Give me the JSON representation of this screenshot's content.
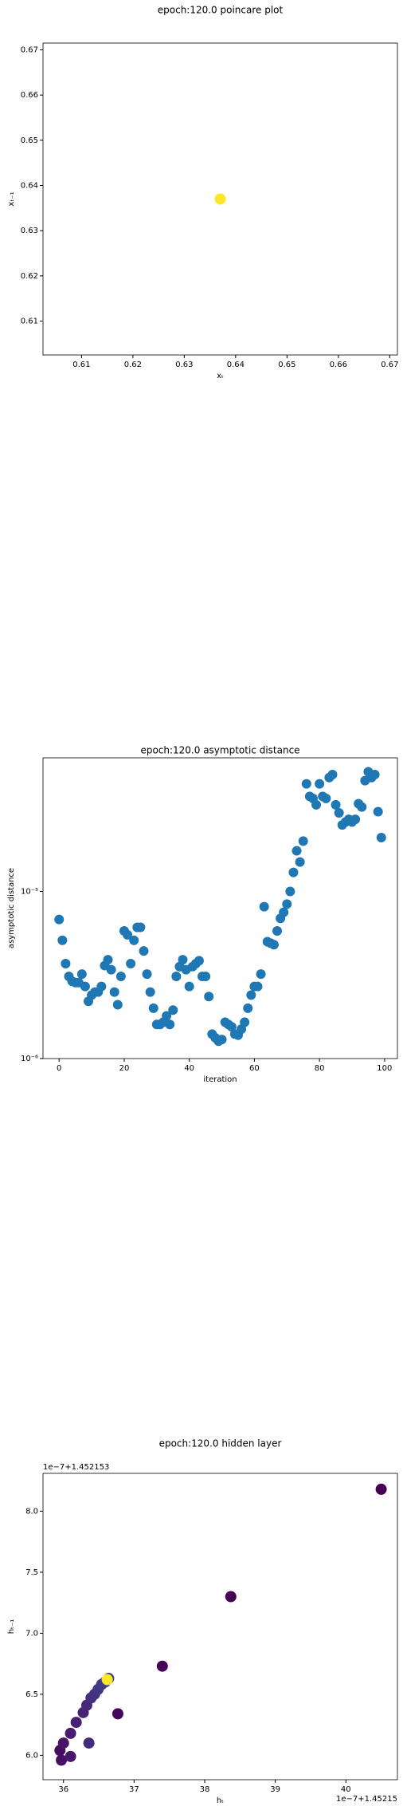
{
  "chart_data": [
    {
      "type": "scatter",
      "title": "epoch:120.0 poincare plot",
      "xlabel": "xₜ",
      "ylabel": "xₜ₋₁",
      "x": [
        0.637
      ],
      "values": [
        0.637
      ],
      "color": "#fde725",
      "xlim": [
        0.6025,
        0.6715
      ],
      "ylim": [
        0.6025,
        0.6715
      ],
      "xticks": [
        0.61,
        0.62,
        0.63,
        0.64,
        0.65,
        0.66,
        0.67
      ],
      "yticks": [
        0.61,
        0.62,
        0.63,
        0.64,
        0.65,
        0.66,
        0.67
      ]
    },
    {
      "type": "scatter",
      "title": "epoch:120.0 asymptotic distance",
      "xlabel": "iteration",
      "ylabel": "asymptotic distance",
      "log_y": true,
      "color": "#1f77b4",
      "x": [
        0,
        1,
        2,
        3,
        4,
        5,
        6,
        7,
        8,
        9,
        10,
        11,
        12,
        13,
        14,
        15,
        16,
        17,
        18,
        19,
        20,
        21,
        22,
        23,
        24,
        25,
        26,
        27,
        28,
        29,
        30,
        31,
        32,
        33,
        34,
        35,
        36,
        37,
        38,
        39,
        40,
        41,
        42,
        43,
        44,
        45,
        46,
        47,
        48,
        49,
        50,
        51,
        52,
        53,
        54,
        55,
        56,
        57,
        58,
        59,
        60,
        61,
        62,
        63,
        64,
        65,
        66,
        67,
        68,
        69,
        70,
        71,
        72,
        73,
        74,
        75,
        76,
        77,
        78,
        79,
        80,
        81,
        82,
        83,
        84,
        85,
        86,
        87,
        88,
        89,
        90,
        91,
        92,
        93,
        94,
        95,
        96,
        97,
        98,
        99
      ],
      "values": [
        6.8e-06,
        5.1e-06,
        3.7e-06,
        3.1e-06,
        2.9e-06,
        2.85e-06,
        2.85e-06,
        3.2e-06,
        2.7e-06,
        2.2e-06,
        2.4e-06,
        2.5e-06,
        2.5e-06,
        2.7e-06,
        3.6e-06,
        3.9e-06,
        3.4e-06,
        2.5e-06,
        2.1e-06,
        3.1e-06,
        5.8e-06,
        5.5e-06,
        3.7e-06,
        5.1e-06,
        6.1e-06,
        6.1e-06,
        4.4e-06,
        3.2e-06,
        2.5e-06,
        2e-06,
        1.6e-06,
        1.6e-06,
        1.65e-06,
        1.8e-06,
        1.6e-06,
        1.95e-06,
        3.1e-06,
        3.55e-06,
        3.9e-06,
        3.4e-06,
        2.7e-06,
        3.55e-06,
        3.7e-06,
        3.85e-06,
        3.1e-06,
        3.1e-06,
        2.35e-06,
        1.4e-06,
        1.33e-06,
        1.27e-06,
        1.3e-06,
        1.65e-06,
        1.6e-06,
        1.55e-06,
        1.4e-06,
        1.38e-06,
        1.5e-06,
        1.65e-06,
        2e-06,
        2.4e-06,
        2.7e-06,
        2.7e-06,
        3.2e-06,
        8.1e-06,
        5e-06,
        4.9e-06,
        4.8e-06,
        5.8e-06,
        6.9e-06,
        7.5e-06,
        8.4e-06,
        1e-05,
        1.3e-05,
        1.75e-05,
        1.5e-05,
        2e-05,
        4.4e-05,
        3.7e-05,
        3.6e-05,
        3.3e-05,
        4.4e-05,
        3.7e-05,
        3.6e-05,
        4.8e-05,
        5e-05,
        3.3e-05,
        2.95e-05,
        2.5e-05,
        2.6e-05,
        2.7e-05,
        2.6e-05,
        2.7e-05,
        3.35e-05,
        3.2e-05,
        4.6e-05,
        5.2e-05,
        4.8e-05,
        5e-05,
        3e-05,
        2.1e-05
      ],
      "xlim": [
        -4.95,
        103.95
      ],
      "ylim": [
        1e-06,
        6.3e-05
      ],
      "xticks": [
        0,
        20,
        40,
        60,
        80,
        100
      ],
      "yticks": [
        {
          "value": 1e-06,
          "label": "10⁻⁶"
        },
        {
          "value": 1e-05,
          "label": "10⁻⁵"
        }
      ]
    },
    {
      "type": "scatter",
      "title": "epoch:120.0 hidden layer",
      "xlabel": "hₜ",
      "ylabel": "hₜ₋₁",
      "offset_text_y": "1e−7+1.452153",
      "offset_text_x": "1e−7+1.45215",
      "x": [
        40.5,
        38.37,
        37.4,
        36.77,
        35.95,
        35.97,
        36.0,
        36.1,
        36.1,
        36.18,
        36.28,
        36.33,
        36.36,
        36.39,
        36.44,
        36.49,
        36.54,
        36.59,
        36.64,
        36.62
      ],
      "values": [
        8.18,
        7.3,
        6.73,
        6.34,
        6.04,
        5.96,
        6.1,
        5.99,
        6.18,
        6.27,
        6.35,
        6.41,
        6.1,
        6.47,
        6.5,
        6.54,
        6.58,
        6.6,
        6.63,
        6.62
      ],
      "colors": [
        "#440154",
        "#440256",
        "#450559",
        "#46085c",
        "#470d60",
        "#471063",
        "#481467",
        "#48186a",
        "#481c6e",
        "#482071",
        "#472374",
        "#472777",
        "#462b7a",
        "#452f7d",
        "#443380",
        "#423783",
        "#413b85",
        "#3f3f87",
        "#3d4389",
        "#fde725"
      ],
      "xlim": [
        35.71,
        40.73
      ],
      "ylim": [
        5.8,
        8.31
      ],
      "xticks": [
        36,
        37,
        38,
        39,
        40
      ],
      "yticks": [
        {
          "value": 6,
          "label": "6.0"
        },
        {
          "value": 6.5,
          "label": "6.5"
        },
        {
          "value": 7,
          "label": "7.0"
        },
        {
          "value": 7.5,
          "label": "7.5"
        },
        {
          "value": 8,
          "label": "8.0"
        }
      ]
    }
  ]
}
